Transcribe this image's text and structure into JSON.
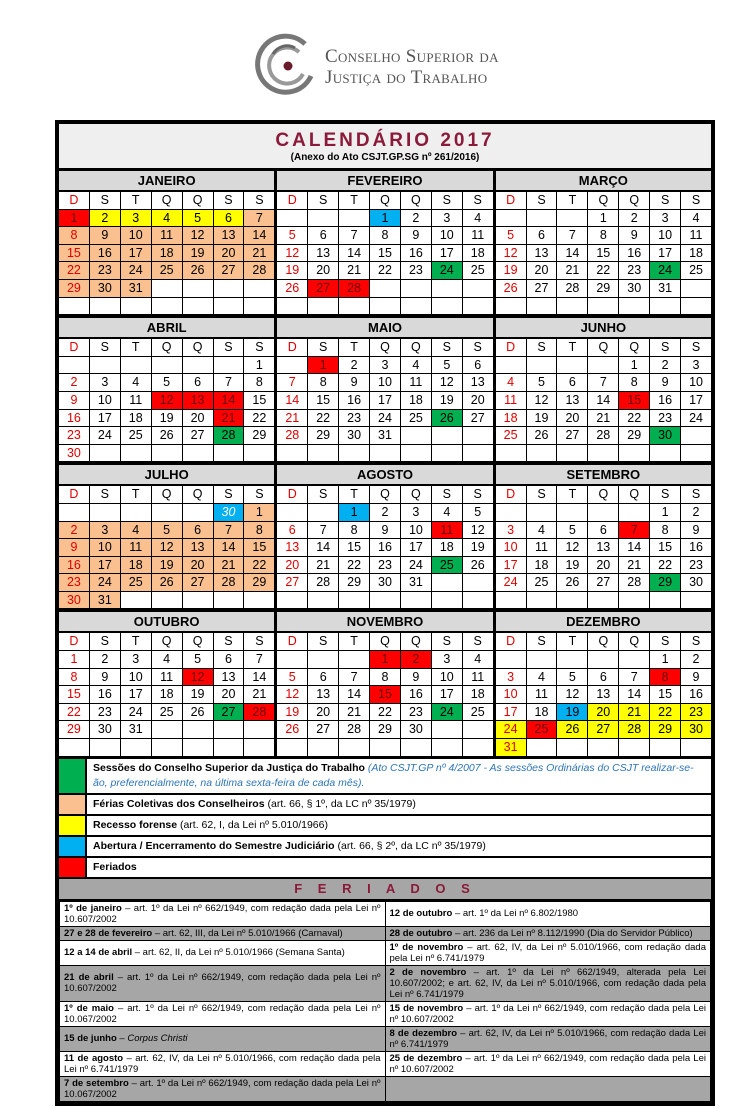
{
  "header": {
    "org_line1": "Conselho Superior da",
    "org_line2": "Justiça do Trabalho",
    "title": "CALENDÁRIO 2017",
    "subtitle": "(Anexo do Ato CSJT.GP.SG nº 261/2016)"
  },
  "colors": {
    "feriado": "#ff0000",
    "sessao": "#00b050",
    "ferias": "#fac090",
    "recesso": "#ffff00",
    "abertura": "#00b0f0",
    "title": "#8b1a3a"
  },
  "weekdays": [
    "D",
    "S",
    "T",
    "Q",
    "Q",
    "S",
    "S"
  ],
  "months": [
    {
      "name": "JANEIRO",
      "start": 0,
      "days": 31,
      "marks": {
        "1": "feriado",
        "2": "recesso",
        "3": "recesso",
        "4": "recesso",
        "5": "recesso",
        "6": "recesso",
        "7": "ferias",
        "8": "ferias",
        "9": "ferias",
        "10": "ferias",
        "11": "ferias",
        "12": "ferias",
        "13": "ferias",
        "14": "ferias",
        "15": "ferias",
        "16": "ferias",
        "17": "ferias",
        "18": "ferias",
        "19": "ferias",
        "20": "ferias",
        "21": "ferias",
        "22": "ferias",
        "23": "ferias",
        "24": "ferias",
        "25": "ferias",
        "26": "ferias",
        "27": "ferias",
        "28": "ferias",
        "29": "ferias",
        "30": "ferias",
        "31": "ferias"
      }
    },
    {
      "name": "FEVEREIRO",
      "start": 3,
      "days": 28,
      "marks": {
        "1": "abertura",
        "24": "sessao",
        "27": "feriado",
        "28": "feriado"
      }
    },
    {
      "name": "MARÇO",
      "start": 3,
      "days": 31,
      "marks": {
        "24": "sessao"
      }
    },
    {
      "name": "ABRIL",
      "start": 6,
      "days": 30,
      "marks": {
        "12": "feriado",
        "13": "feriado",
        "14": "feriado",
        "21": "feriado",
        "28": "sessao"
      }
    },
    {
      "name": "MAIO",
      "start": 1,
      "days": 31,
      "marks": {
        "1": "feriado",
        "26": "sessao"
      }
    },
    {
      "name": "JUNHO",
      "start": 4,
      "days": 30,
      "marks": {
        "15": "feriado",
        "30": "sessao"
      }
    },
    {
      "name": "JULHO",
      "start": 6,
      "days": 31,
      "prev_day": {
        "label": "30",
        "mark": "abertura"
      },
      "marks": {
        "1": "ferias",
        "2": "ferias",
        "3": "ferias",
        "4": "ferias",
        "5": "ferias",
        "6": "ferias",
        "7": "ferias",
        "8": "ferias",
        "9": "ferias",
        "10": "ferias",
        "11": "ferias",
        "12": "ferias",
        "13": "ferias",
        "14": "ferias",
        "15": "ferias",
        "16": "ferias",
        "17": "ferias",
        "18": "ferias",
        "19": "ferias",
        "20": "ferias",
        "21": "ferias",
        "22": "ferias",
        "23": "ferias",
        "24": "ferias",
        "25": "ferias",
        "26": "ferias",
        "27": "ferias",
        "28": "ferias",
        "29": "ferias",
        "30": "ferias",
        "31": "ferias"
      }
    },
    {
      "name": "AGOSTO",
      "start": 2,
      "days": 31,
      "marks": {
        "1": "abertura",
        "11": "feriado",
        "25": "sessao"
      }
    },
    {
      "name": "SETEMBRO",
      "start": 5,
      "days": 30,
      "marks": {
        "7": "feriado",
        "29": "sessao"
      }
    },
    {
      "name": "OUTUBRO",
      "start": 0,
      "days": 31,
      "marks": {
        "12": "feriado",
        "27": "sessao",
        "28": "feriado"
      }
    },
    {
      "name": "NOVEMBRO",
      "start": 3,
      "days": 30,
      "marks": {
        "1": "feriado",
        "2": "feriado",
        "15": "feriado",
        "24": "sessao"
      }
    },
    {
      "name": "DEZEMBRO",
      "start": 5,
      "days": 31,
      "marks": {
        "8": "feriado",
        "19": "abertura",
        "20": "recesso",
        "21": "recesso",
        "22": "recesso",
        "23": "recesso",
        "24": "recesso",
        "25": "feriado",
        "26": "recesso",
        "27": "recesso",
        "28": "recesso",
        "29": "recesso",
        "30": "recesso",
        "31": "recesso"
      }
    }
  ],
  "legend": [
    {
      "type": "sessao",
      "label": "Sessões do Conselho Superior da Justiça do Trabalho",
      "note": "(Ato CSJT.GP nº 4/2007 - As sessões Ordinárias do CSJT realizar-se-ão, preferencialmente, na última sexta-feira de cada mês)."
    },
    {
      "type": "ferias",
      "label": "Férias Coletivas dos Conselheiros",
      "detail": " (art. 66, § 1º, da LC nº 35/1979)"
    },
    {
      "type": "recesso",
      "label": "Recesso forense",
      "detail": " (art. 62, I, da Lei nº 5.010/1966)"
    },
    {
      "type": "abertura",
      "label": "Abertura / Encerramento do Semestre Judiciário",
      "detail": " (art. 66, § 2º, da LC nº 35/1979)"
    },
    {
      "type": "feriado",
      "label": "Feriados",
      "detail": ""
    }
  ],
  "feriados_title": "F E R I A D O S",
  "feriados": [
    [
      {
        "date": "1º de janeiro",
        "text": " – art. 1º da Lei nº 662/1949, com redação dada pela Lei nº 10.607/2002"
      },
      {
        "date": "12 de outubro",
        "text": " – art. 1º da Lei nº 6.802/1980"
      }
    ],
    [
      {
        "date": "27 e 28 de fevereiro",
        "text": " – art. 62, III, da Lei nº 5.010/1966 (Carnaval)"
      },
      {
        "date": "28 de outubro",
        "text": " – art. 236 da Lei nº 8.112/1990 (Dia do Servidor Público)"
      }
    ],
    [
      {
        "date": "12 a 14 de abril",
        "text": " – art. 62, II, da Lei nº 5.010/1966 (Semana Santa)"
      },
      {
        "date": "1º de novembro",
        "text": " – art. 62, IV, da Lei nº 5.010/1966, com redação dada pela Lei nº 6.741/1979"
      }
    ],
    [
      {
        "date": "21 de abril",
        "text": " – art. 1º da Lei nº 662/1949, com redação dada pela Lei nº 10.607/2002"
      },
      {
        "date": "2 de novembro",
        "text": " – art. 1º da Lei nº 662/1949, alterada pela Lei 10.607/2002; e art. 62, IV, da Lei nº 5.010/1966, com redação dada pela Lei nº 6.741/1979"
      }
    ],
    [
      {
        "date": "1º de maio",
        "text": " – art. 1º da Lei nº 662/1949, com redação dada pela Lei nº 10.067/2002"
      },
      {
        "date": "15 de novembro",
        "text": " – art. 1º da Lei nº 662/1949, com redação dada pela Lei nº 10.607/2002"
      }
    ],
    [
      {
        "date": "15 de junho",
        "text": " – ",
        "italic": "Corpus Christi"
      },
      {
        "date": "8 de dezembro",
        "text": " – art. 62, IV, da Lei nº 5.010/1966, com redação dada Lei nº 6.741/1979"
      }
    ],
    [
      {
        "date": "11 de agosto",
        "text": " – art. 62, IV, da Lei nº 5.010/1966, com redação dada pela Lei nº 6.741/1979"
      },
      {
        "date": "25 de dezembro",
        "text": " – art. 1º da Lei nº 662/1949, com redação dada pela Lei nº 10.607/2002"
      }
    ],
    [
      {
        "date": "7 de setembro",
        "text": " – art. 1º da Lei nº 662/1949, com redação dada pela Lei nº 10.067/2002"
      },
      null
    ]
  ]
}
